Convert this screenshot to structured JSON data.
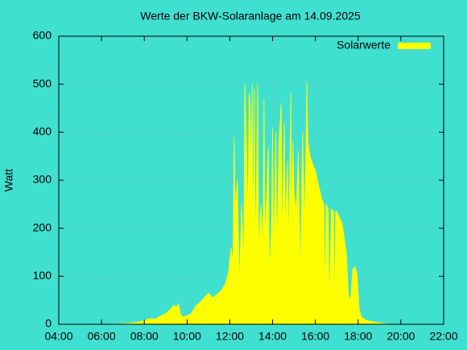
{
  "chart_data": {
    "type": "area",
    "title": "Werte der BKW-Solaranlage am 14.09.2025",
    "y_label": "Watt",
    "legend_position": "top-right",
    "grid": true,
    "x": [
      6.5,
      7.0,
      7.5,
      7.8,
      8.0,
      8.3,
      8.5,
      8.8,
      9.0,
      9.2,
      9.4,
      9.5,
      9.6,
      9.7,
      9.8,
      10.0,
      10.2,
      10.4,
      10.6,
      10.8,
      11.0,
      11.2,
      11.4,
      11.6,
      11.8,
      11.95,
      12.05,
      12.15,
      12.2,
      12.25,
      12.35,
      12.45,
      12.55,
      12.65,
      12.7,
      12.78,
      12.85,
      12.9,
      12.95,
      13.0,
      13.05,
      13.1,
      13.15,
      13.2,
      13.3,
      13.35,
      13.45,
      13.55,
      13.6,
      13.65,
      13.8,
      13.85,
      13.95,
      14.0,
      14.05,
      14.15,
      14.2,
      14.3,
      14.4,
      14.45,
      14.55,
      14.6,
      14.7,
      14.75,
      14.85,
      14.9,
      14.95,
      15.0,
      15.1,
      15.2,
      15.3,
      15.4,
      15.5,
      15.6,
      15.65,
      15.75,
      15.9,
      16.0,
      16.1,
      16.2,
      16.3,
      16.4,
      16.45,
      16.5,
      16.6,
      16.65,
      16.75,
      16.85,
      16.9,
      16.95,
      17.0,
      17.1,
      17.25,
      17.35,
      17.45,
      17.55,
      17.65,
      17.75,
      17.85,
      17.95,
      18.05,
      18.15,
      18.4,
      18.7,
      19.0,
      19.3,
      19.6
    ],
    "series": [
      {
        "name": "Solarwerte",
        "color": "#ffff00",
        "values": [
          0,
          1,
          3,
          5,
          8,
          12,
          10,
          18,
          22,
          30,
          40,
          35,
          42,
          20,
          15,
          18,
          22,
          38,
          45,
          55,
          65,
          55,
          62,
          70,
          85,
          110,
          160,
          130,
          390,
          240,
          300,
          80,
          250,
          120,
          500,
          380,
          200,
          480,
          460,
          300,
          500,
          150,
          490,
          130,
          500,
          150,
          250,
          160,
          470,
          170,
          370,
          100,
          200,
          410,
          130,
          400,
          140,
          380,
          460,
          160,
          420,
          190,
          340,
          150,
          480,
          200,
          380,
          280,
          230,
          360,
          90,
          400,
          200,
          506,
          380,
          350,
          330,
          320,
          300,
          280,
          260,
          250,
          30,
          250,
          240,
          30,
          240,
          235,
          20,
          235,
          235,
          225,
          210,
          180,
          150,
          60,
          50,
          115,
          120,
          105,
          30,
          15,
          8,
          5,
          3,
          1,
          0
        ]
      }
    ],
    "xlim": [
      4,
      22
    ],
    "xticks": [
      {
        "value": 4,
        "label": "04:00"
      },
      {
        "value": 6,
        "label": "06:00"
      },
      {
        "value": 8,
        "label": "08:00"
      },
      {
        "value": 10,
        "label": "10:00"
      },
      {
        "value": 12,
        "label": "12:00"
      },
      {
        "value": 14,
        "label": "14:00"
      },
      {
        "value": 16,
        "label": "16:00"
      },
      {
        "value": 18,
        "label": "18:00"
      },
      {
        "value": 20,
        "label": "20:00"
      },
      {
        "value": 22,
        "label": "22:00"
      }
    ],
    "ylim": [
      0,
      600
    ],
    "yticks": [
      0,
      100,
      200,
      300,
      400,
      500,
      600
    ]
  }
}
